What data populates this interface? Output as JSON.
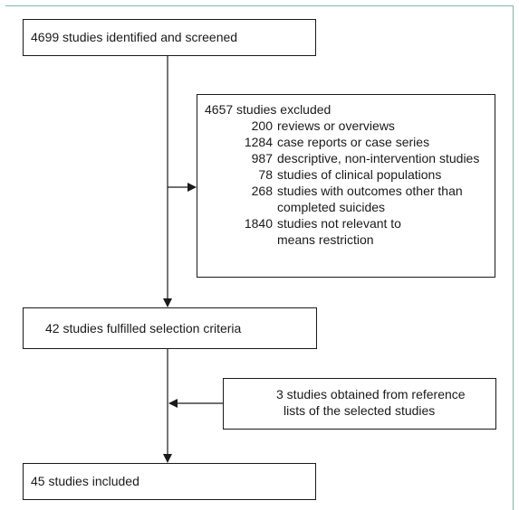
{
  "diagram": {
    "identified_box": {
      "text": "4699 studies identified and screened"
    },
    "excluded_box": {
      "header": "4657 studies excluded",
      "items": [
        {
          "count": "200",
          "lines": [
            "reviews or overviews"
          ]
        },
        {
          "count": "1284",
          "lines": [
            "case reports or case series"
          ]
        },
        {
          "count": "987",
          "lines": [
            "descriptive, non-intervention studies"
          ]
        },
        {
          "count": "78",
          "lines": [
            "studies of clinical populations"
          ]
        },
        {
          "count": "268",
          "lines": [
            "studies with outcomes other than",
            "completed suicides"
          ]
        },
        {
          "count": "1840",
          "lines": [
            "studies not relevant to",
            "means restriction"
          ]
        }
      ]
    },
    "fulfilled_box": {
      "text": "42 studies fulfilled selection criteria"
    },
    "reference_box": {
      "lines": [
        "3 studies obtained from reference",
        "lists of the selected studies"
      ]
    },
    "included_box": {
      "text": "45 studies included"
    }
  },
  "colors": {
    "frame": "#7fb7ad",
    "line": "#1a1a1a"
  }
}
